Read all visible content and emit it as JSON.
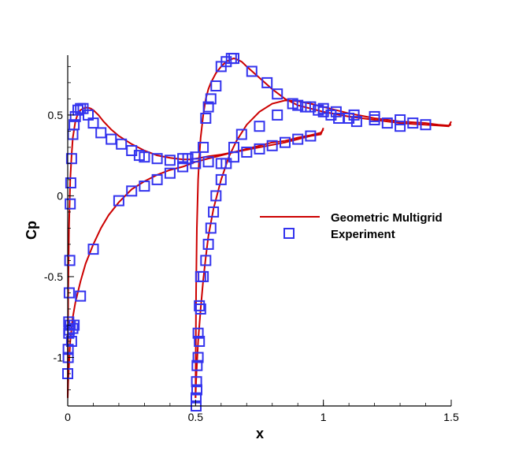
{
  "chart_data": {
    "type": "line",
    "xlabel": "x",
    "ylabel": "Cp",
    "xlim": [
      0,
      1.5
    ],
    "ylim": [
      -1.3,
      0.87
    ],
    "x_ticks": [
      {
        "value": 0,
        "label": "0"
      },
      {
        "value": 0.5,
        "label": "0.5"
      },
      {
        "value": 1,
        "label": "1"
      },
      {
        "value": 1.5,
        "label": "1.5"
      }
    ],
    "y_ticks": [
      {
        "value": 0.5,
        "label": "0.5"
      },
      {
        "value": 0,
        "label": "0"
      },
      {
        "value": -0.5,
        "label": "-0.5"
      },
      {
        "value": -1,
        "label": "-1"
      }
    ],
    "grid": false,
    "legend_position": "right",
    "colors": {
      "line": "#cc0000",
      "marker": "#3333ee"
    },
    "series": [
      {
        "name": "Geometric Multigrid",
        "kind": "line",
        "segments": [
          {
            "x": [
              0.0,
              0.002,
              0.005,
              0.01,
              0.015,
              0.02,
              0.03,
              0.04,
              0.05,
              0.06,
              0.07,
              0.08,
              0.09,
              0.1,
              0.12,
              0.14,
              0.17,
              0.2,
              0.25,
              0.3,
              0.35,
              0.4,
              0.45,
              0.48,
              0.5,
              0.52,
              0.55,
              0.6,
              0.65,
              0.7,
              0.75,
              0.8,
              0.85,
              0.9,
              0.95,
              0.99,
              1.0
            ],
            "y": [
              -1.25,
              -0.6,
              -0.2,
              0.1,
              0.25,
              0.36,
              0.46,
              0.51,
              0.53,
              0.54,
              0.545,
              0.545,
              0.54,
              0.53,
              0.5,
              0.46,
              0.41,
              0.37,
              0.32,
              0.28,
              0.25,
              0.235,
              0.225,
              0.225,
              0.23,
              0.235,
              0.245,
              0.255,
              0.27,
              0.285,
              0.3,
              0.315,
              0.33,
              0.35,
              0.37,
              0.38,
              0.42
            ]
          },
          {
            "x": [
              0.0,
              0.002,
              0.005,
              0.01,
              0.015,
              0.02,
              0.03,
              0.05,
              0.07,
              0.1,
              0.13,
              0.16,
              0.2,
              0.25,
              0.3,
              0.35,
              0.4,
              0.45,
              0.5,
              0.55,
              0.6,
              0.65,
              0.7,
              0.75,
              0.8,
              0.85,
              0.9,
              0.95,
              0.99,
              1.0
            ],
            "y": [
              -1.25,
              -1.15,
              -1.05,
              -0.9,
              -0.82,
              -0.75,
              -0.66,
              -0.53,
              -0.42,
              -0.3,
              -0.2,
              -0.12,
              -0.04,
              0.04,
              0.09,
              0.13,
              0.16,
              0.18,
              0.21,
              0.23,
              0.25,
              0.27,
              0.29,
              0.31,
              0.33,
              0.34,
              0.36,
              0.375,
              0.39,
              0.41
            ]
          },
          {
            "x": [
              0.5,
              0.502,
              0.505,
              0.51,
              0.515,
              0.52,
              0.53,
              0.54,
              0.55,
              0.56,
              0.57,
              0.58,
              0.6,
              0.62,
              0.64,
              0.65,
              0.66,
              0.68,
              0.7,
              0.75,
              0.8,
              0.85,
              0.9,
              0.95,
              1.0,
              1.05,
              1.1,
              1.15,
              1.2,
              1.25,
              1.3,
              1.35,
              1.4,
              1.45,
              1.49,
              1.5
            ],
            "y": [
              -1.25,
              -0.6,
              -0.2,
              0.1,
              0.25,
              0.36,
              0.5,
              0.6,
              0.66,
              0.7,
              0.73,
              0.76,
              0.8,
              0.83,
              0.845,
              0.85,
              0.845,
              0.83,
              0.8,
              0.73,
              0.66,
              0.6,
              0.56,
              0.54,
              0.52,
              0.505,
              0.49,
              0.48,
              0.47,
              0.46,
              0.45,
              0.445,
              0.44,
              0.435,
              0.43,
              0.46
            ]
          },
          {
            "x": [
              0.5,
              0.502,
              0.505,
              0.51,
              0.515,
              0.52,
              0.53,
              0.54,
              0.55,
              0.57,
              0.6,
              0.63,
              0.66,
              0.7,
              0.75,
              0.8,
              0.85,
              0.9,
              0.95,
              1.0,
              1.05,
              1.1,
              1.15,
              1.2,
              1.25,
              1.3,
              1.35,
              1.4,
              1.45,
              1.49,
              1.5
            ],
            "y": [
              -1.25,
              -1.15,
              -1.05,
              -0.9,
              -0.8,
              -0.7,
              -0.52,
              -0.38,
              -0.25,
              -0.08,
              0.1,
              0.24,
              0.34,
              0.44,
              0.52,
              0.57,
              0.59,
              0.585,
              0.57,
              0.55,
              0.53,
              0.51,
              0.495,
              0.48,
              0.47,
              0.46,
              0.455,
              0.45,
              0.44,
              0.435,
              0.44
            ]
          }
        ]
      },
      {
        "name": "Experiment",
        "kind": "markers",
        "x": [
          0.0,
          0.002,
          0.004,
          0.006,
          0.008,
          0.01,
          0.012,
          0.015,
          0.02,
          0.025,
          0.03,
          0.04,
          0.05,
          0.06,
          0.08,
          0.1,
          0.13,
          0.17,
          0.21,
          0.25,
          0.28,
          0.3,
          0.35,
          0.4,
          0.45,
          0.47,
          0.5,
          0.002,
          0.004,
          0.006,
          0.01,
          0.015,
          0.02,
          0.025,
          0.05,
          0.1,
          0.2,
          0.25,
          0.3,
          0.35,
          0.4,
          0.45,
          0.5,
          0.55,
          0.6,
          0.65,
          0.7,
          0.75,
          0.8,
          0.85,
          0.9,
          0.95,
          0.502,
          0.504,
          0.506,
          0.51,
          0.515,
          0.52,
          0.53,
          0.54,
          0.55,
          0.56,
          0.58,
          0.6,
          0.62,
          0.64,
          0.65,
          0.72,
          0.78,
          0.82,
          0.88,
          0.93,
          0.98,
          1.0,
          1.03,
          1.06,
          1.1,
          1.13,
          1.2,
          1.25,
          1.3,
          1.35,
          1.4,
          0.502,
          0.505,
          0.51,
          0.515,
          0.52,
          0.53,
          0.54,
          0.55,
          0.56,
          0.57,
          0.58,
          0.6,
          0.62,
          0.65,
          0.68,
          0.75,
          0.82,
          0.9,
          0.95,
          1.0,
          1.05,
          1.12,
          1.2,
          1.3
        ],
        "y": [
          -1.1,
          -0.95,
          -0.78,
          -0.6,
          -0.4,
          -0.05,
          0.08,
          0.23,
          0.38,
          0.44,
          0.49,
          0.53,
          0.54,
          0.54,
          0.5,
          0.45,
          0.39,
          0.35,
          0.32,
          0.28,
          0.25,
          0.24,
          0.23,
          0.22,
          0.23,
          0.23,
          0.24,
          -1.0,
          -0.85,
          -0.83,
          -0.8,
          -0.9,
          -0.82,
          -0.8,
          -0.62,
          -0.33,
          -0.03,
          0.03,
          0.06,
          0.1,
          0.14,
          0.18,
          0.2,
          0.21,
          0.2,
          0.24,
          0.27,
          0.29,
          0.31,
          0.33,
          0.35,
          0.37,
          -1.25,
          -1.15,
          -1.05,
          -0.85,
          -0.68,
          -0.5,
          0.3,
          0.48,
          0.55,
          0.6,
          0.68,
          0.8,
          0.83,
          0.85,
          0.85,
          0.77,
          0.7,
          0.63,
          0.57,
          0.55,
          0.53,
          0.52,
          0.5,
          0.48,
          0.48,
          0.46,
          0.47,
          0.45,
          0.43,
          0.45,
          0.44,
          -1.3,
          -1.2,
          -1.0,
          -0.9,
          -0.7,
          -0.5,
          -0.4,
          -0.3,
          -0.2,
          -0.1,
          0.0,
          0.1,
          0.2,
          0.3,
          0.38,
          0.43,
          0.5,
          0.56,
          0.55,
          0.54,
          0.52,
          0.5,
          0.49,
          0.47
        ]
      }
    ]
  }
}
